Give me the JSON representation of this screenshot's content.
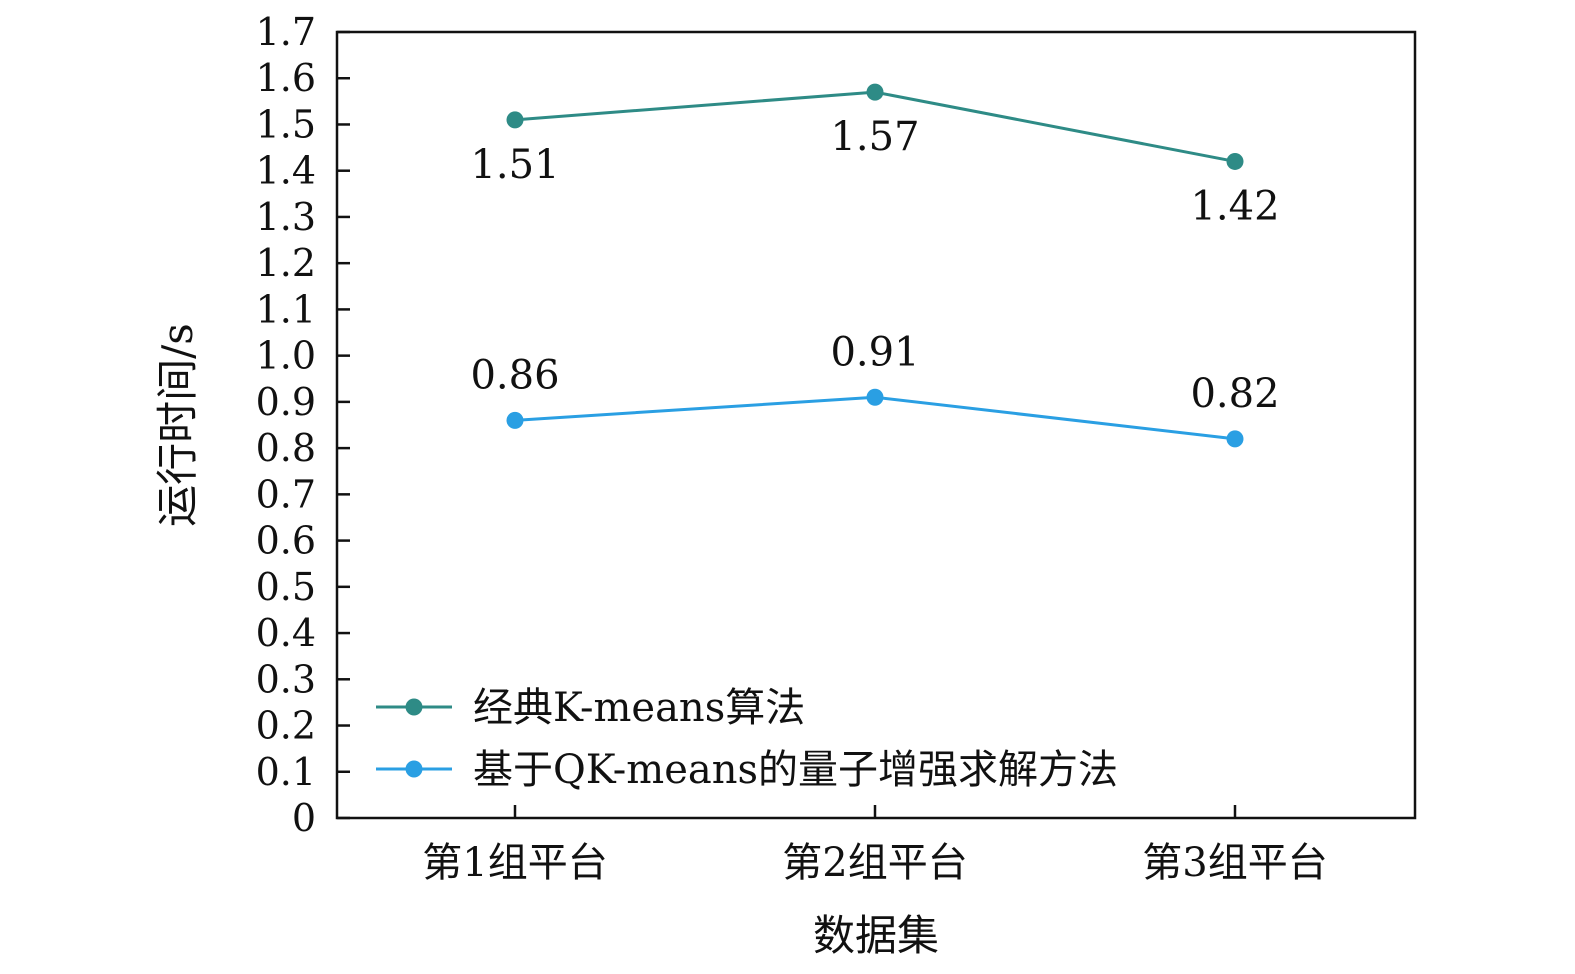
{
  "chart_data": {
    "type": "line",
    "categories": [
      "第1组平台",
      "第2组平台",
      "第3组平台"
    ],
    "xlabel": "数据集",
    "ylabel": "运行时间/s",
    "ylim": [
      0,
      1.7
    ],
    "yticks": [
      "0",
      "0.1",
      "0.2",
      "0.3",
      "0.4",
      "0.5",
      "0.6",
      "0.7",
      "0.8",
      "0.9",
      "1.0",
      "1.1",
      "1.2",
      "1.3",
      "1.4",
      "1.5",
      "1.6",
      "1.7"
    ],
    "legend_position": "bottom-left",
    "grid": false,
    "series": [
      {
        "name": "经典K-means算法",
        "values": [
          1.51,
          1.57,
          1.42
        ],
        "labels": [
          "1.51",
          "1.57",
          "1.42"
        ],
        "color": "#2e8b86",
        "label_position": "below"
      },
      {
        "name": "基于QK-means的量子增强求解方法",
        "values": [
          0.86,
          0.91,
          0.82
        ],
        "labels": [
          "0.86",
          "0.91",
          "0.82"
        ],
        "color": "#2a9fe3",
        "label_position": "above"
      }
    ]
  }
}
